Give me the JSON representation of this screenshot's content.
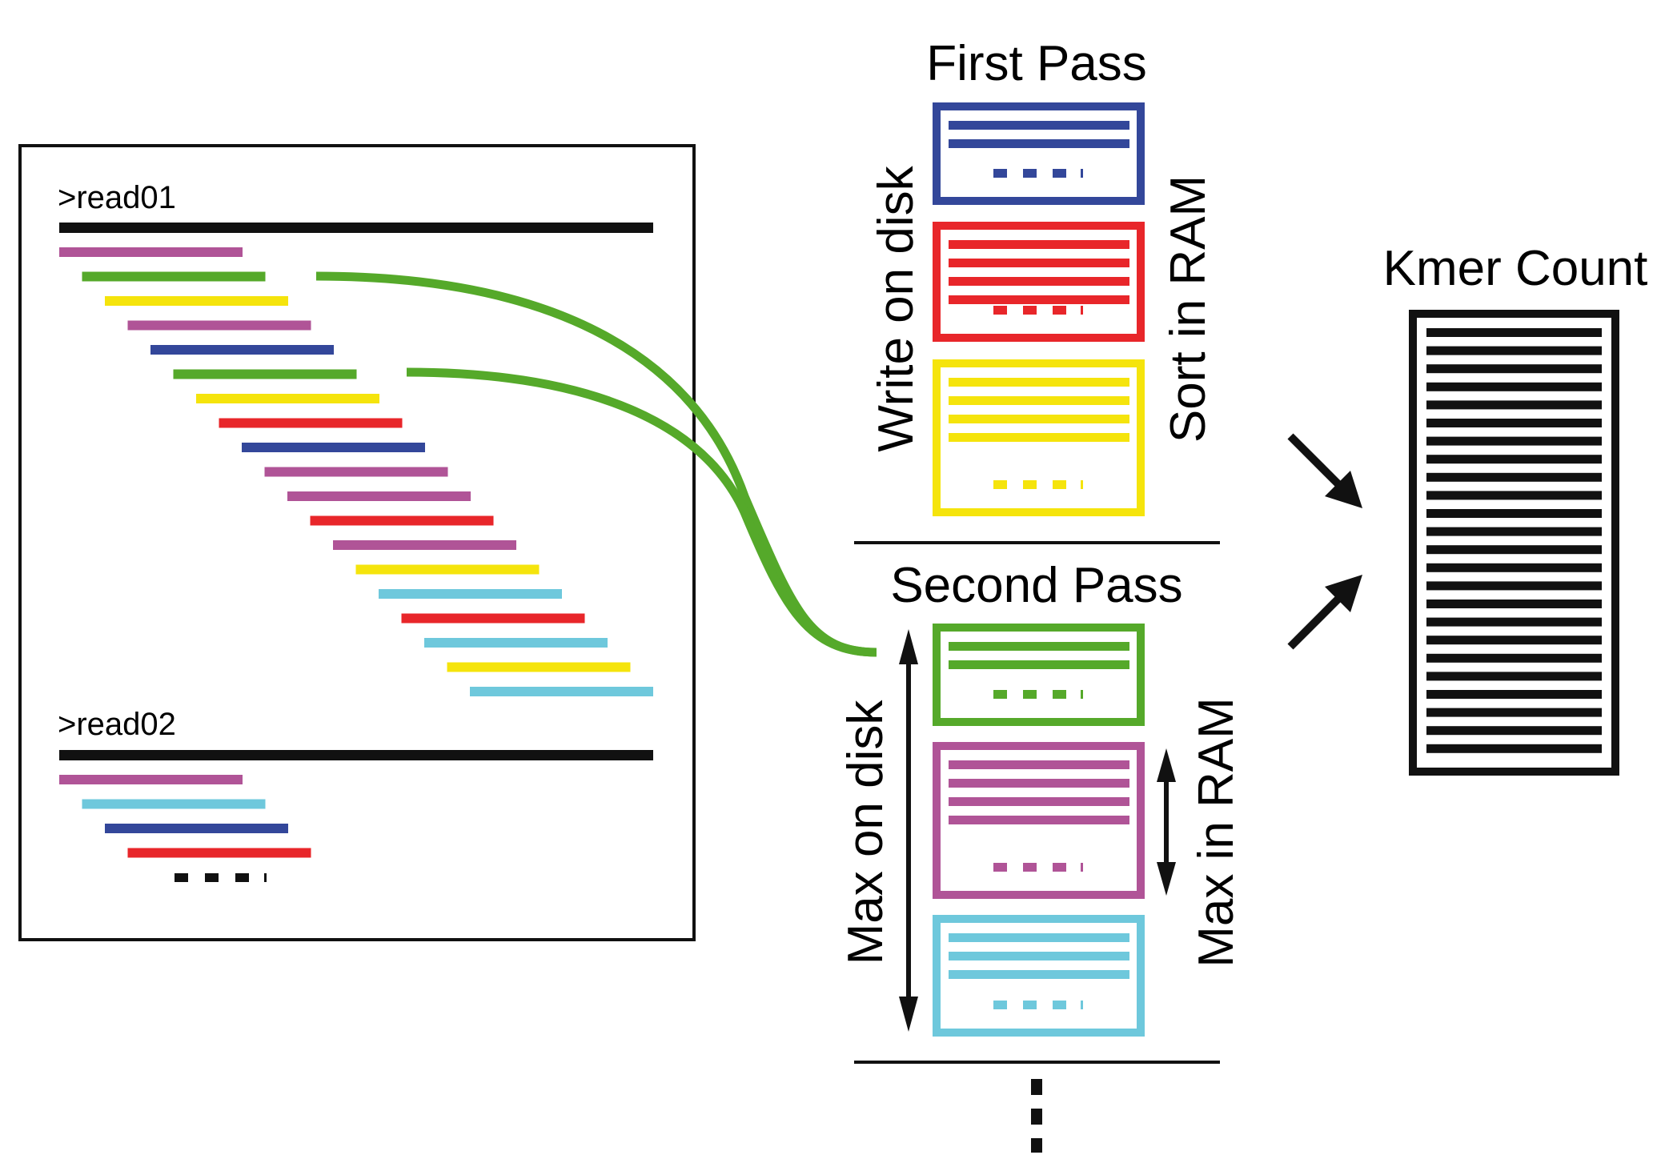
{
  "labels": {
    "read1": ">read01",
    "read2": ">read02",
    "first_pass": "First Pass",
    "second_pass": "Second Pass",
    "write_on_disk": "Write on disk",
    "sort_in_ram": "Sort in RAM",
    "max_on_disk": "Max on disk",
    "max_in_ram": "Max in RAM",
    "kmer_count": "Kmer Count"
  },
  "colors": {
    "black": "#111111",
    "purple": "#b05497",
    "green": "#55a92a",
    "yellow": "#f5e40c",
    "blue": "#33479a",
    "red": "#e8262a",
    "cyan": "#6ec8dc"
  },
  "read1_kmers": [
    "purple",
    "green",
    "yellow",
    "purple",
    "blue",
    "green",
    "yellow",
    "red",
    "blue",
    "purple",
    "purple",
    "red",
    "purple",
    "yellow",
    "cyan",
    "red",
    "cyan",
    "yellow",
    "cyan"
  ],
  "read2_kmers": [
    "purple",
    "cyan",
    "blue",
    "red"
  ],
  "first_pass_bins": [
    {
      "color": "blue",
      "lines": 2
    },
    {
      "color": "red",
      "lines": 4
    },
    {
      "color": "yellow",
      "lines": 4
    }
  ],
  "second_pass_bins": [
    {
      "color": "green",
      "lines": 2
    },
    {
      "color": "purple",
      "lines": 4
    },
    {
      "color": "cyan",
      "lines": 3
    }
  ],
  "kmer_count_rows": 24
}
